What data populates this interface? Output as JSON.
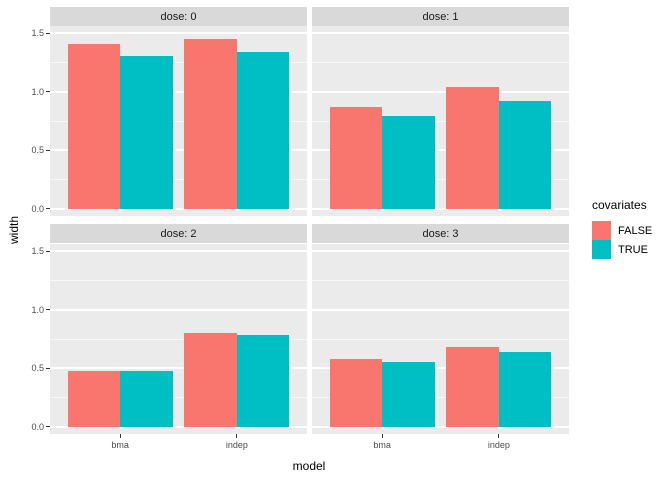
{
  "chart_data": {
    "type": "bar",
    "title": "",
    "xlabel": "model",
    "ylabel": "width",
    "categories": [
      "bma",
      "indep"
    ],
    "facet_variable": "dose",
    "facet_layout": "2x2",
    "facets": [
      {
        "label": "dose: 0",
        "series": [
          {
            "name": "FALSE",
            "values": [
              1.41,
              1.45
            ]
          },
          {
            "name": "TRUE",
            "values": [
              1.3,
              1.34
            ]
          }
        ]
      },
      {
        "label": "dose: 1",
        "series": [
          {
            "name": "FALSE",
            "values": [
              0.87,
              1.04
            ]
          },
          {
            "name": "TRUE",
            "values": [
              0.79,
              0.92
            ]
          }
        ]
      },
      {
        "label": "dose: 2",
        "series": [
          {
            "name": "FALSE",
            "values": [
              0.48,
              0.8
            ]
          },
          {
            "name": "TRUE",
            "values": [
              0.48,
              0.78
            ]
          }
        ]
      },
      {
        "label": "dose: 3",
        "series": [
          {
            "name": "FALSE",
            "values": [
              0.58,
              0.68
            ]
          },
          {
            "name": "TRUE",
            "values": [
              0.55,
              0.64
            ]
          }
        ]
      }
    ],
    "y_ticks": [
      "0.0",
      "0.5",
      "1.0",
      "1.5"
    ],
    "y_tick_values": [
      0.0,
      0.5,
      1.0,
      1.5
    ],
    "y_minor_values": [
      0.25,
      0.75,
      1.25
    ],
    "ylim": [
      -0.06,
      1.56
    ],
    "grid": "on",
    "legend": {
      "title": "covariates",
      "position": "right",
      "entries": [
        {
          "label": "FALSE",
          "color": "#F8766D"
        },
        {
          "label": "TRUE",
          "color": "#00BFC4"
        }
      ]
    },
    "colors": {
      "FALSE": "#F8766D",
      "TRUE": "#00BFC4",
      "panel_bg": "#EBEBEB",
      "strip_bg": "#D9D9D9",
      "grid": "#FFFFFF",
      "tick_text": "#4D4D4D"
    }
  }
}
